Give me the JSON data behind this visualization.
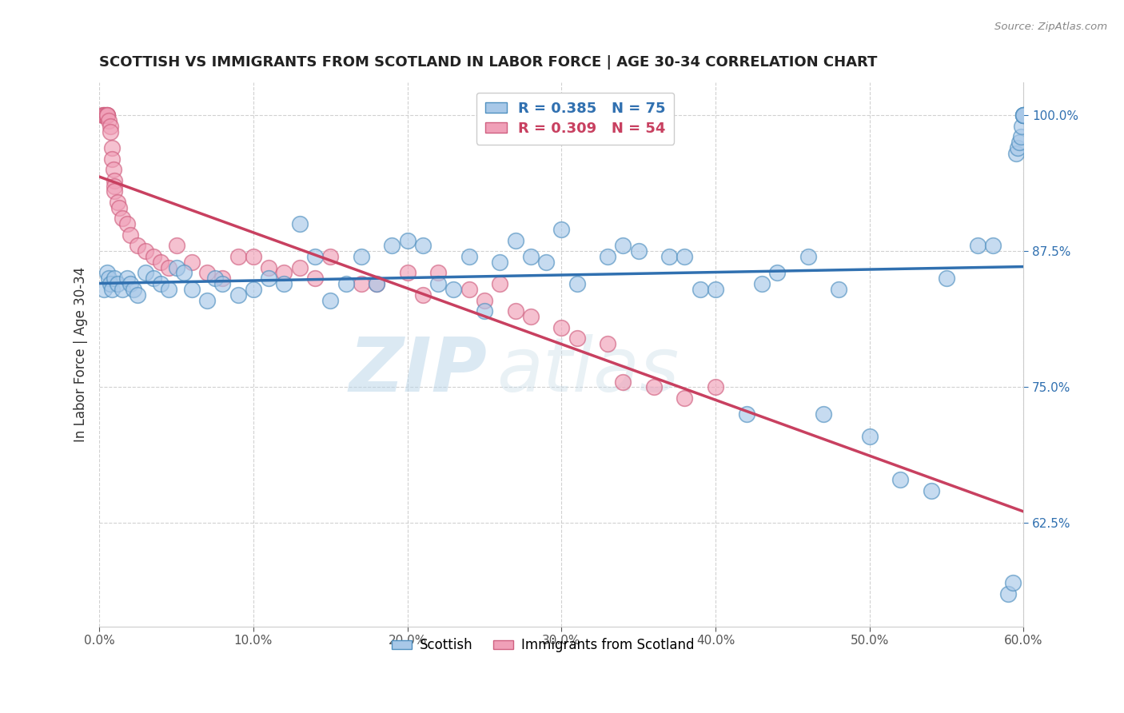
{
  "title": "SCOTTISH VS IMMIGRANTS FROM SCOTLAND IN LABOR FORCE | AGE 30-34 CORRELATION CHART",
  "source": "Source: ZipAtlas.com",
  "xlabel_ticks": [
    "0.0%",
    "10.0%",
    "20.0%",
    "30.0%",
    "40.0%",
    "50.0%",
    "60.0%"
  ],
  "xlabel_vals": [
    0.0,
    10.0,
    20.0,
    30.0,
    40.0,
    50.0,
    60.0
  ],
  "ylabel": "In Labor Force | Age 30-34",
  "ylabel_ticks": [
    "62.5%",
    "75.0%",
    "87.5%",
    "100.0%"
  ],
  "ylabel_vals": [
    62.5,
    75.0,
    87.5,
    100.0
  ],
  "xlim": [
    0.0,
    60.0
  ],
  "ylim": [
    53.0,
    103.0
  ],
  "blue_R": 0.385,
  "blue_N": 75,
  "pink_R": 0.309,
  "pink_N": 54,
  "blue_color": "#a8c8e8",
  "blue_edge": "#5090c0",
  "blue_trend": "#3070b0",
  "pink_color": "#f0a0b8",
  "pink_edge": "#d06080",
  "pink_trend": "#c84060",
  "blue_scatter_x": [
    0.3,
    0.5,
    0.6,
    0.7,
    0.8,
    1.0,
    1.2,
    1.5,
    1.8,
    2.0,
    2.2,
    2.5,
    3.0,
    3.5,
    4.0,
    4.5,
    5.0,
    5.5,
    6.0,
    7.0,
    7.5,
    8.0,
    9.0,
    10.0,
    11.0,
    12.0,
    13.0,
    14.0,
    15.0,
    16.0,
    17.0,
    18.0,
    19.0,
    20.0,
    21.0,
    22.0,
    23.0,
    24.0,
    25.0,
    26.0,
    27.0,
    28.0,
    29.0,
    30.0,
    31.0,
    33.0,
    34.0,
    35.0,
    37.0,
    38.0,
    39.0,
    40.0,
    42.0,
    43.0,
    44.0,
    46.0,
    47.0,
    48.0,
    50.0,
    52.0,
    54.0,
    55.0,
    57.0,
    58.0,
    59.0,
    59.3,
    59.5,
    59.6,
    59.7,
    59.8,
    59.9,
    60.0,
    60.0,
    60.0,
    60.0
  ],
  "blue_scatter_y": [
    84.0,
    85.5,
    85.0,
    84.5,
    84.0,
    85.0,
    84.5,
    84.0,
    85.0,
    84.5,
    84.0,
    83.5,
    85.5,
    85.0,
    84.5,
    84.0,
    86.0,
    85.5,
    84.0,
    83.0,
    85.0,
    84.5,
    83.5,
    84.0,
    85.0,
    84.5,
    90.0,
    87.0,
    83.0,
    84.5,
    87.0,
    84.5,
    88.0,
    88.5,
    88.0,
    84.5,
    84.0,
    87.0,
    82.0,
    86.5,
    88.5,
    87.0,
    86.5,
    89.5,
    84.5,
    87.0,
    88.0,
    87.5,
    87.0,
    87.0,
    84.0,
    84.0,
    72.5,
    84.5,
    85.5,
    87.0,
    72.5,
    84.0,
    70.5,
    66.5,
    65.5,
    85.0,
    88.0,
    88.0,
    56.0,
    57.0,
    96.5,
    97.0,
    97.5,
    98.0,
    99.0,
    100.0,
    100.0,
    100.0,
    100.0
  ],
  "pink_scatter_x": [
    0.2,
    0.3,
    0.3,
    0.4,
    0.5,
    0.5,
    0.5,
    0.6,
    0.7,
    0.7,
    0.8,
    0.8,
    0.9,
    1.0,
    1.0,
    1.0,
    1.2,
    1.3,
    1.5,
    1.8,
    2.0,
    2.5,
    3.0,
    3.5,
    4.0,
    4.5,
    5.0,
    6.0,
    7.0,
    8.0,
    9.0,
    10.0,
    11.0,
    12.0,
    13.0,
    14.0,
    15.0,
    17.0,
    18.0,
    20.0,
    21.0,
    22.0,
    24.0,
    25.0,
    26.0,
    27.0,
    28.0,
    30.0,
    31.0,
    33.0,
    34.0,
    36.0,
    38.0,
    40.0
  ],
  "pink_scatter_y": [
    100.0,
    100.0,
    100.0,
    100.0,
    100.0,
    100.0,
    100.0,
    99.5,
    99.0,
    98.5,
    97.0,
    96.0,
    95.0,
    94.0,
    93.5,
    93.0,
    92.0,
    91.5,
    90.5,
    90.0,
    89.0,
    88.0,
    87.5,
    87.0,
    86.5,
    86.0,
    88.0,
    86.5,
    85.5,
    85.0,
    87.0,
    87.0,
    86.0,
    85.5,
    86.0,
    85.0,
    87.0,
    84.5,
    84.5,
    85.5,
    83.5,
    85.5,
    84.0,
    83.0,
    84.5,
    82.0,
    81.5,
    80.5,
    79.5,
    79.0,
    75.5,
    75.0,
    74.0,
    75.0
  ],
  "watermark_zip": "ZIP",
  "watermark_atlas": "atlas",
  "background_color": "#ffffff",
  "grid_color": "#cccccc"
}
